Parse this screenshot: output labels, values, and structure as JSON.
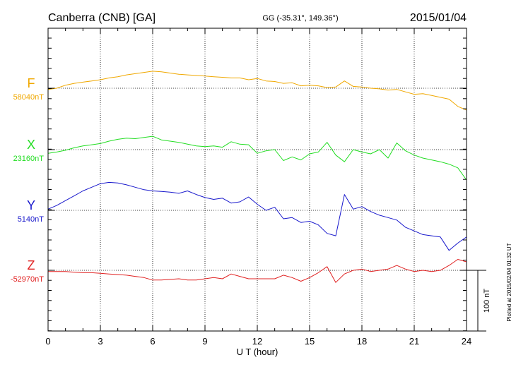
{
  "chart_data": {
    "type": "line",
    "title": "Canberra (CNB)  [GA]",
    "subtitle": "GG (-35.31°, 149.36°)",
    "date": "2015/01/04",
    "xlabel": "U T (hour)",
    "xlim": [
      0,
      24
    ],
    "xticks": [
      "0",
      "3",
      "6",
      "9",
      "12",
      "15",
      "18",
      "21",
      "24"
    ],
    "grid": true,
    "scale_bar": "100 nT",
    "footer": "Plotted at 2015/02/04 01:32 UT",
    "series": [
      {
        "name": "F",
        "baseline": "58040nT",
        "color": "#f0a800",
        "x": [
          0,
          0.5,
          1,
          1.5,
          2,
          2.5,
          3,
          3.5,
          4,
          4.5,
          5,
          5.5,
          6,
          6.5,
          7,
          7.5,
          8,
          8.5,
          9,
          9.5,
          10,
          10.5,
          11,
          11.5,
          12,
          12.5,
          13,
          13.5,
          14,
          14.5,
          15,
          15.5,
          16,
          16.5,
          17,
          17.5,
          18,
          18.5,
          19,
          19.5,
          20,
          20.5,
          21,
          21.5,
          22,
          22.5,
          23,
          23.5,
          24
        ],
        "values": [
          -2,
          0,
          5,
          8,
          10,
          12,
          14,
          17,
          19,
          22,
          24,
          26,
          28,
          27,
          25,
          23,
          22,
          21,
          20,
          19,
          18,
          17,
          17,
          14,
          16,
          12,
          11,
          8,
          9,
          4,
          5,
          4,
          1,
          2,
          12,
          3,
          2,
          0,
          -1,
          -3,
          -2,
          -6,
          -10,
          -9,
          -12,
          -15,
          -18,
          -30,
          -36
        ]
      },
      {
        "name": "X",
        "baseline": "23160nT",
        "color": "#22dd22",
        "x": [
          0,
          0.5,
          1,
          1.5,
          2,
          2.5,
          3,
          3.5,
          4,
          4.5,
          5,
          5.5,
          6,
          6.5,
          7,
          7.5,
          8,
          8.5,
          9,
          9.5,
          10,
          10.5,
          11,
          11.5,
          12,
          12.5,
          13,
          13.5,
          14,
          14.5,
          15,
          15.5,
          16,
          16.5,
          17,
          17.5,
          18,
          18.5,
          19,
          19.5,
          20,
          20.5,
          21,
          21.5,
          22,
          22.5,
          23,
          23.5,
          24
        ],
        "values": [
          -6,
          -4,
          -1,
          3,
          6,
          8,
          10,
          14,
          17,
          19,
          18,
          20,
          22,
          16,
          14,
          12,
          9,
          6,
          5,
          6,
          4,
          13,
          9,
          8,
          -6,
          -2,
          0,
          -18,
          -12,
          -17,
          -7,
          -4,
          12,
          -9,
          -20,
          0,
          -4,
          -7,
          0,
          -14,
          11,
          -2,
          -9,
          -14,
          -17,
          -20,
          -24,
          -30,
          -50
        ]
      },
      {
        "name": "Y",
        "baseline": "5140nT",
        "color": "#1818cc",
        "x": [
          0,
          0.5,
          1,
          1.5,
          2,
          2.5,
          3,
          3.5,
          4,
          4.5,
          5,
          5.5,
          6,
          6.5,
          7,
          7.5,
          8,
          8.5,
          9,
          9.5,
          10,
          10.5,
          11,
          11.5,
          12,
          12.5,
          13,
          13.5,
          14,
          14.5,
          15,
          15.5,
          16,
          16.5,
          17,
          17.5,
          18,
          18.5,
          19,
          19.5,
          20,
          20.5,
          21,
          21.5,
          22,
          22.5,
          23,
          23.5,
          24
        ],
        "values": [
          2,
          8,
          16,
          24,
          32,
          38,
          44,
          46,
          45,
          42,
          38,
          34,
          32,
          31,
          30,
          28,
          32,
          26,
          21,
          18,
          20,
          12,
          14,
          22,
          10,
          0,
          5,
          -14,
          -12,
          -20,
          -18,
          -24,
          -38,
          -42,
          26,
          2,
          6,
          -2,
          -8,
          -12,
          -16,
          -28,
          -34,
          -40,
          -42,
          -44,
          -66,
          -54,
          -44
        ]
      },
      {
        "name": "Z",
        "baseline": "-52970nT",
        "color": "#e02020",
        "x": [
          0,
          0.5,
          1,
          1.5,
          2,
          2.5,
          3,
          3.5,
          4,
          4.5,
          5,
          5.5,
          6,
          6.5,
          7,
          7.5,
          8,
          8.5,
          9,
          9.5,
          10,
          10.5,
          11,
          11.5,
          12,
          12.5,
          13,
          13.5,
          14,
          14.5,
          15,
          15.5,
          16,
          16.5,
          17,
          17.5,
          18,
          18.5,
          19,
          19.5,
          20,
          20.5,
          21,
          21.5,
          22,
          22.5,
          23,
          23.5,
          24
        ],
        "values": [
          -2,
          -2,
          -2,
          -3,
          -4,
          -4,
          -5,
          -6,
          -7,
          -8,
          -10,
          -12,
          -16,
          -16,
          -15,
          -14,
          -16,
          -16,
          -14,
          -12,
          -14,
          -6,
          -10,
          -14,
          -14,
          -14,
          -14,
          -8,
          -12,
          -18,
          -12,
          -4,
          6,
          -20,
          -6,
          0,
          2,
          -2,
          0,
          2,
          8,
          2,
          -2,
          0,
          -2,
          0,
          8,
          18,
          14
        ]
      }
    ]
  }
}
